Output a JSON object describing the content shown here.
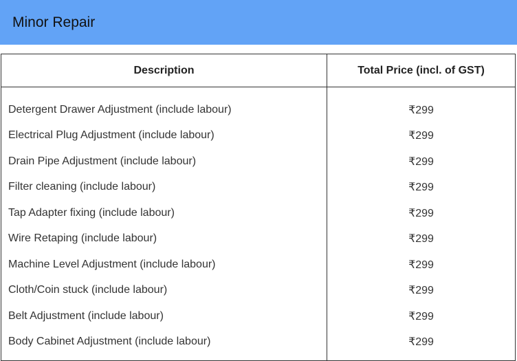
{
  "section": {
    "title": "Minor Repair",
    "clipped_right_text": "("
  },
  "table": {
    "headers": [
      "Description",
      "Total Price (incl. of GST)"
    ],
    "rows": [
      {
        "description": "Detergent Drawer Adjustment (include labour)",
        "price": "₹299"
      },
      {
        "description": "Electrical Plug Adjustment (include labour)",
        "price": "₹299"
      },
      {
        "description": "Drain Pipe Adjustment (include labour)",
        "price": "₹299"
      },
      {
        "description": "Filter cleaning (include labour)",
        "price": "₹299"
      },
      {
        "description": "Tap Adapter fixing (include labour)",
        "price": "₹299"
      },
      {
        "description": "Wire Retaping (include labour)",
        "price": "₹299"
      },
      {
        "description": "Machine Level Adjustment (include labour)",
        "price": "₹299"
      },
      {
        "description": "Cloth/Coin stuck (include labour)",
        "price": "₹299"
      },
      {
        "description": "Belt Adjustment (include labour)",
        "price": "₹299"
      },
      {
        "description": "Body Cabinet Adjustment (include labour)",
        "price": "₹299"
      }
    ]
  },
  "colors": {
    "header_background": "#62a3f6",
    "border": "#333333"
  }
}
